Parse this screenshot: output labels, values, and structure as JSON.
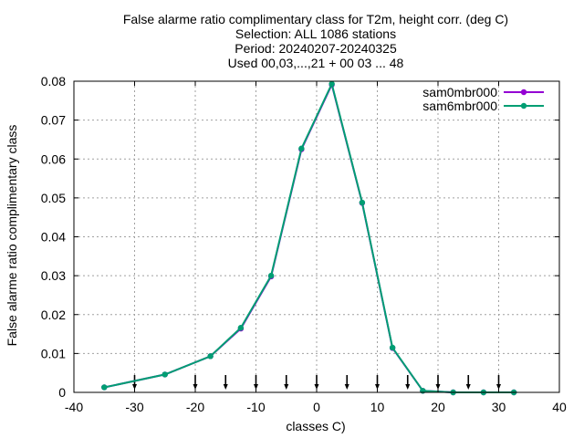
{
  "chart_data": {
    "type": "line",
    "title_lines": [
      "False alarme ratio complimentary class  for T2m, height corr. (deg C)",
      "Selection: ALL   1086 stations",
      "Period: 20240207-20240325",
      "Used 00,03,...,21 + 00 03 ... 48"
    ],
    "xlabel": "classes C)",
    "ylabel": "False alarme ratio complimentary class",
    "xlim": [
      -40,
      40
    ],
    "ylim": [
      0,
      0.08
    ],
    "xticks": [
      -40,
      -30,
      -20,
      -10,
      0,
      10,
      20,
      30,
      40
    ],
    "xtick_labels": [
      "-40",
      "-30",
      "-20",
      "-10",
      "0",
      "10",
      "20",
      "30",
      "40"
    ],
    "yticks": [
      0,
      0.01,
      0.02,
      0.03,
      0.04,
      0.05,
      0.06,
      0.07,
      0.08
    ],
    "ytick_labels": [
      "0",
      "0.01",
      "0.02",
      "0.03",
      "0.04",
      "0.05",
      "0.06",
      "0.07",
      "0.08"
    ],
    "grid": true,
    "legend_position": "top-right",
    "series": [
      {
        "name": "sam0mbr000",
        "color": "#9400d3",
        "x": [
          -35,
          -25,
          -17.5,
          -12.5,
          -7.5,
          -2.5,
          2.5,
          7.5,
          12.5,
          17.5,
          22.5,
          27.5,
          32.5
        ],
        "y": [
          0.0013,
          0.0046,
          0.0093,
          0.0164,
          0.0298,
          0.0625,
          0.0791,
          0.0487,
          0.0114,
          0.0004,
          0.0,
          0.0,
          0.0
        ]
      },
      {
        "name": "sam6mbr000",
        "color": "#009e73",
        "x": [
          -35,
          -25,
          -17.5,
          -12.5,
          -7.5,
          -2.5,
          2.5,
          7.5,
          12.5,
          17.5,
          22.5,
          27.5,
          32.5
        ],
        "y": [
          0.0013,
          0.0046,
          0.0093,
          0.0166,
          0.03,
          0.0627,
          0.0793,
          0.0488,
          0.0115,
          0.0004,
          0.0,
          0.0,
          0.0
        ]
      }
    ],
    "threshold_markers_x": [
      -30,
      -20,
      -15,
      -10,
      -5,
      0,
      5,
      10,
      15,
      20,
      25,
      30
    ]
  }
}
